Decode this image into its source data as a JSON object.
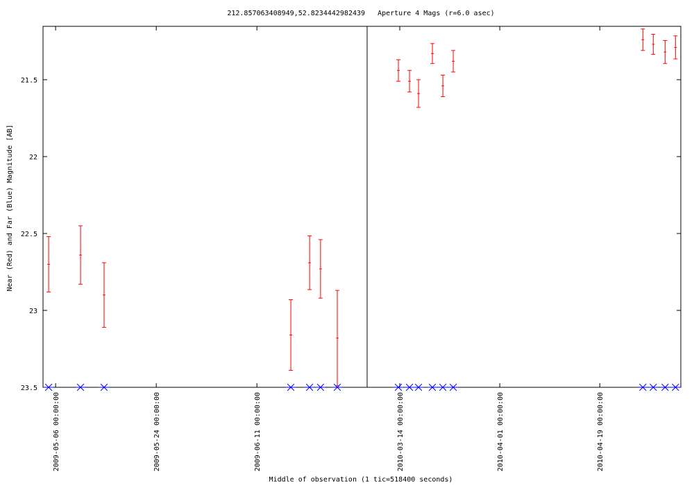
{
  "chart_data": {
    "type": "errorbar",
    "title": "212.857063408949,52.8234442982439   Aperture 4 Mags (r=6.0 asec)",
    "xlabel": "Middle of observation (1 tic=518400 seconds)",
    "ylabel": "Near (Red) and Far (Blue) Magnitude [AB]",
    "ylim": [
      23.5,
      21.153
    ],
    "yticks": [
      21.5,
      22,
      22.5,
      23,
      23.5
    ],
    "panels": [
      {
        "xlim": [
          "2009-05-03 18:00:00",
          "2009-06-30 17:00:00"
        ],
        "xticks": [
          "2009-05-06 00:00:00",
          "2009-05-24 00:00:00",
          "2009-06-11 00:00:00"
        ],
        "x": [
          "2009-05-04 18:00:00",
          "2009-05-10 11:00:00",
          "2009-05-14 16:00:00",
          "2009-06-17 01:30:00",
          "2009-06-20 10:00:00",
          "2009-06-22 09:00:00",
          "2009-06-25 09:00:00"
        ],
        "series": [
          {
            "color": "#ff0000",
            "marker": "errorbar",
            "values": [
              22.7,
              22.64,
              22.9,
              23.16,
              22.69,
              22.73,
              23.18
            ],
            "errors": [
              0.18,
              0.19,
              0.21,
              0.23,
              0.175,
              0.19,
              0.31
            ]
          },
          {
            "color": "#0000ff",
            "marker": "star",
            "values": [
              23.5,
              23.5,
              23.5,
              23.5,
              23.5,
              23.5,
              23.5
            ]
          }
        ]
      },
      {
        "xlim": [
          "2010-03-08 03:00:00",
          "2010-05-03 14:00:00"
        ],
        "xticks": [
          "2010-03-14 00:00:00",
          "2010-04-01 00:00:00",
          "2010-04-19 00:00:00"
        ],
        "x": [
          "2010-03-13 18:00:00",
          "2010-03-15 18:00:00",
          "2010-03-17 09:00:00",
          "2010-03-19 21:00:00",
          "2010-03-21 18:00:00",
          "2010-03-23 15:00:00",
          "2010-04-26 18:00:00",
          "2010-04-28 15:00:00",
          "2010-04-30 18:00:00",
          "2010-05-02 15:00:00"
        ],
        "series": [
          {
            "color": "#ff0000",
            "marker": "errorbar",
            "values": [
              21.44,
              21.51,
              21.59,
              21.33,
              21.54,
              21.38,
              21.24,
              21.27,
              21.32,
              21.29
            ],
            "errors": [
              0.07,
              0.07,
              0.09,
              0.065,
              0.07,
              0.07,
              0.07,
              0.065,
              0.075,
              0.075
            ]
          },
          {
            "color": "#0000ff",
            "marker": "star",
            "values": [
              23.5,
              23.5,
              23.5,
              23.5,
              23.5,
              23.5,
              23.5,
              23.5,
              23.5,
              23.5
            ]
          }
        ]
      }
    ]
  }
}
